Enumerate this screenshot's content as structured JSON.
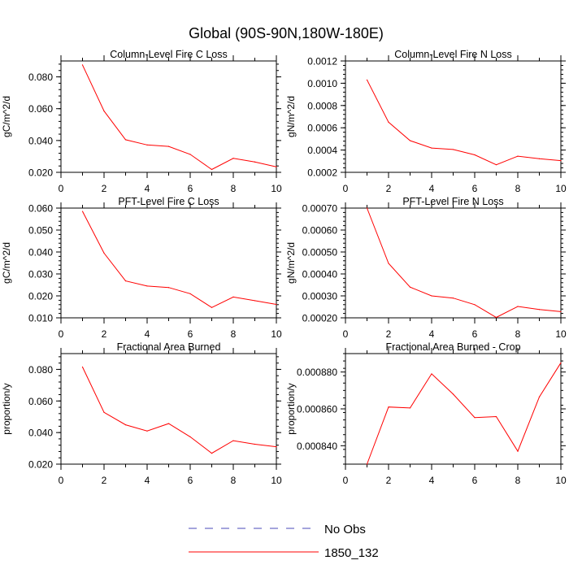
{
  "title": "Global (90S-90N,180W-180E)",
  "chart_data": [
    {
      "type": "line",
      "title": "Column-Level Fire C Loss",
      "xlabel": "",
      "ylabel": "gC/m^2/d",
      "xlim": [
        0,
        10
      ],
      "ylim": [
        0.02,
        0.09
      ],
      "xticks": [
        "0",
        "2",
        "4",
        "6",
        "8",
        "10"
      ],
      "yticks": [
        "0.020",
        "0.040",
        "0.060",
        "0.080"
      ],
      "x": [
        1,
        2,
        3,
        4,
        5,
        6,
        7,
        8,
        9,
        10
      ],
      "series": [
        {
          "name": "1850_132",
          "color": "#ff0000",
          "values": [
            0.0875,
            0.0585,
            0.0405,
            0.0372,
            0.0363,
            0.0313,
            0.0218,
            0.0288,
            0.0265,
            0.0235
          ]
        }
      ]
    },
    {
      "type": "line",
      "title": "Column-Level Fire N Loss",
      "xlabel": "",
      "ylabel": "gN/m^2/d",
      "xlim": [
        0,
        10
      ],
      "ylim": [
        0.0002,
        0.0012
      ],
      "xticks": [
        "0",
        "2",
        "4",
        "6",
        "8",
        "10"
      ],
      "yticks": [
        "0.0002",
        "0.0004",
        "0.0006",
        "0.0008",
        "0.0010",
        "0.0012"
      ],
      "x": [
        1,
        2,
        3,
        4,
        5,
        6,
        7,
        8,
        9,
        10
      ],
      "series": [
        {
          "name": "1850_132",
          "color": "#ff0000",
          "values": [
            0.00103,
            0.00065,
            0.000485,
            0.000418,
            0.000405,
            0.000357,
            0.000268,
            0.000345,
            0.000322,
            0.000305
          ]
        }
      ]
    },
    {
      "type": "line",
      "title": "PFT-Level Fire C Loss",
      "xlabel": "",
      "ylabel": "gC/m^2/d",
      "xlim": [
        0,
        10
      ],
      "ylim": [
        0.01,
        0.06
      ],
      "xticks": [
        "0",
        "2",
        "4",
        "6",
        "8",
        "10"
      ],
      "yticks": [
        "0.010",
        "0.020",
        "0.030",
        "0.040",
        "0.050",
        "0.060"
      ],
      "x": [
        1,
        2,
        3,
        4,
        5,
        6,
        7,
        8,
        9,
        10
      ],
      "series": [
        {
          "name": "1850_132",
          "color": "#ff0000",
          "values": [
            0.0585,
            0.0395,
            0.0268,
            0.0245,
            0.0238,
            0.021,
            0.0147,
            0.0195,
            0.0178,
            0.0161
          ]
        }
      ]
    },
    {
      "type": "line",
      "title": "PFT-Level Fire N Loss",
      "xlabel": "",
      "ylabel": "gN/m^2/d",
      "xlim": [
        0,
        10
      ],
      "ylim": [
        0.0002,
        0.0007
      ],
      "xticks": [
        "0",
        "2",
        "4",
        "6",
        "8",
        "10"
      ],
      "yticks": [
        "0.00020",
        "0.00030",
        "0.00040",
        "0.00050",
        "0.00060",
        "0.00070"
      ],
      "x": [
        1,
        2,
        3,
        4,
        5,
        6,
        7,
        8,
        9,
        10
      ],
      "series": [
        {
          "name": "1850_132",
          "color": "#ff0000",
          "values": [
            0.0007,
            0.000448,
            0.00034,
            0.0003,
            0.00029,
            0.00026,
            0.000202,
            0.000252,
            0.000238,
            0.000228
          ]
        }
      ]
    },
    {
      "type": "line",
      "title": "Fractional Area Burned",
      "xlabel": "",
      "ylabel": "proportion/y",
      "xlim": [
        0,
        10
      ],
      "ylim": [
        0.02,
        0.09
      ],
      "xticks": [
        "0",
        "2",
        "4",
        "6",
        "8",
        "10"
      ],
      "yticks": [
        "0.020",
        "0.040",
        "0.060",
        "0.080"
      ],
      "x": [
        1,
        2,
        3,
        4,
        5,
        6,
        7,
        8,
        9,
        10
      ],
      "series": [
        {
          "name": "1850_132",
          "color": "#ff0000",
          "values": [
            0.0815,
            0.0528,
            0.0449,
            0.041,
            0.0457,
            0.0373,
            0.0269,
            0.0349,
            0.0326,
            0.031
          ]
        }
      ]
    },
    {
      "type": "line",
      "title": "Fractional Area Burned - Crop",
      "xlabel": "",
      "ylabel": "proportion/y",
      "xlim": [
        0,
        10
      ],
      "ylim": [
        0.00083,
        0.00089
      ],
      "xticks": [
        "0",
        "2",
        "4",
        "6",
        "8",
        "10"
      ],
      "yticks": [
        "0.000840",
        "0.000860",
        "0.000880"
      ],
      "x": [
        1,
        2,
        3,
        4,
        5,
        6,
        7,
        8,
        9,
        10
      ],
      "series": [
        {
          "name": "1850_132",
          "color": "#ff0000",
          "values": [
            0.00083,
            0.000861,
            0.0008605,
            0.000879,
            0.000868,
            0.0008553,
            0.0008558,
            0.000837,
            0.0008665,
            0.000885
          ]
        }
      ]
    }
  ],
  "legend": [
    {
      "label": "No Obs",
      "color": "#4a4ab8",
      "style": "dashed"
    },
    {
      "label": "1850_132",
      "color": "#ff0000",
      "style": "solid"
    }
  ]
}
